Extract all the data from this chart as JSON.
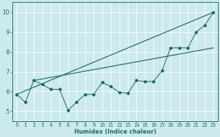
{
  "xlabel": "Humidex (Indice chaleur)",
  "bg_color": "#cce9f0",
  "line_color": "#1a6b60",
  "grid_color": "#ffffff",
  "xlim": [
    -0.5,
    23.5
  ],
  "ylim": [
    4.5,
    10.5
  ],
  "xticks": [
    0,
    1,
    2,
    3,
    4,
    5,
    6,
    7,
    8,
    9,
    10,
    11,
    12,
    13,
    14,
    15,
    16,
    17,
    18,
    19,
    20,
    21,
    22,
    23
  ],
  "yticks": [
    5,
    6,
    7,
    8,
    9,
    10
  ],
  "zigzag_x": [
    0,
    1,
    2,
    3,
    4,
    5,
    6,
    7,
    8,
    9,
    10,
    11,
    12,
    13,
    14,
    15,
    16,
    17,
    18,
    19,
    20,
    21,
    22,
    23
  ],
  "zigzag_y": [
    5.85,
    5.45,
    6.55,
    6.35,
    6.1,
    6.1,
    5.05,
    5.45,
    5.85,
    5.85,
    6.45,
    6.25,
    5.95,
    5.9,
    6.55,
    6.5,
    6.5,
    7.05,
    8.2,
    8.2,
    8.2,
    9.0,
    9.35,
    10.0
  ],
  "trend1_x": [
    0,
    23
  ],
  "trend1_y": [
    5.85,
    10.0
  ],
  "trend2_x": [
    2,
    23
  ],
  "trend2_y": [
    6.55,
    8.2
  ]
}
